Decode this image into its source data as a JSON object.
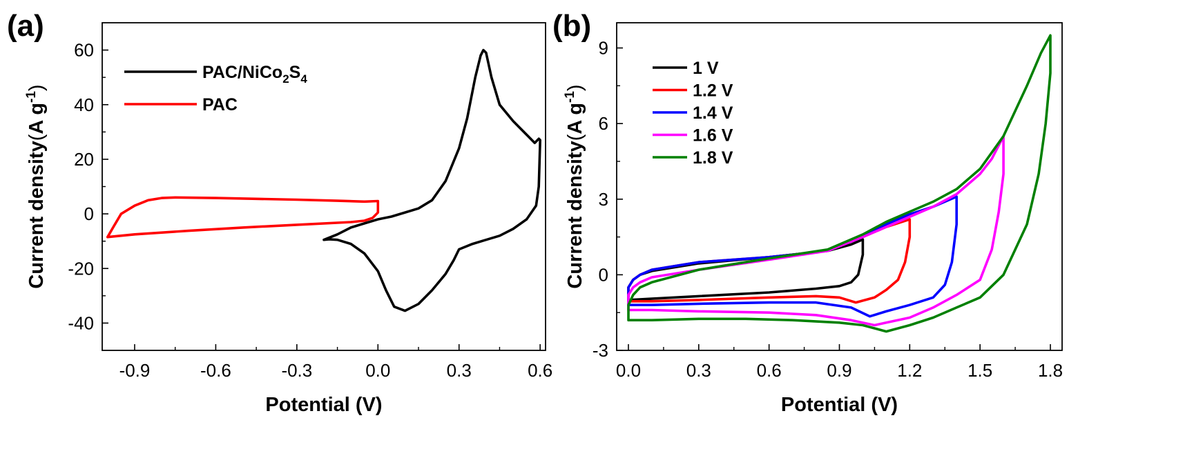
{
  "chart_data": [
    {
      "panel_label": "(a)",
      "type": "line",
      "xlabel": "Potential (V)",
      "ylabel": {
        "main": "Current density",
        "open": "(",
        "unit": "A g",
        "sup": "-1",
        "close": ")"
      },
      "xlim": [
        -1.02,
        0.62
      ],
      "ylim": [
        -50,
        70
      ],
      "x_ticks": [
        "-0.9",
        "-0.6",
        "-0.3",
        "0.0",
        "0.3",
        "0.6"
      ],
      "y_ticks": [
        "-40",
        "-20",
        "0",
        "20",
        "40",
        "60"
      ],
      "legend_position": "top-left",
      "series": [
        {
          "name": "PAC/NiCo2S4",
          "legend": {
            "base": "PAC/NiCo",
            "sub1": "2",
            "mid": "S",
            "sub2": "4"
          },
          "color": "#000000",
          "points": [
            [
              -0.2,
              -9.5
            ],
            [
              -0.15,
              -7.5
            ],
            [
              -0.1,
              -5.0
            ],
            [
              -0.05,
              -3.5
            ],
            [
              0.0,
              -2.0
            ],
            [
              0.05,
              -1.0
            ],
            [
              0.1,
              0.5
            ],
            [
              0.15,
              2.0
            ],
            [
              0.2,
              5.0
            ],
            [
              0.25,
              12.0
            ],
            [
              0.3,
              24.0
            ],
            [
              0.33,
              35.0
            ],
            [
              0.36,
              50.0
            ],
            [
              0.38,
              58.0
            ],
            [
              0.39,
              60.0
            ],
            [
              0.4,
              59.0
            ],
            [
              0.42,
              50.0
            ],
            [
              0.45,
              40.0
            ],
            [
              0.5,
              34.0
            ],
            [
              0.55,
              29.0
            ],
            [
              0.58,
              26.0
            ],
            [
              0.595,
              27.5
            ],
            [
              0.6,
              27.0
            ],
            [
              0.595,
              10.0
            ],
            [
              0.585,
              3.0
            ],
            [
              0.55,
              -2.0
            ],
            [
              0.5,
              -5.5
            ],
            [
              0.45,
              -8.0
            ],
            [
              0.4,
              -9.5
            ],
            [
              0.35,
              -11.0
            ],
            [
              0.3,
              -13.0
            ],
            [
              0.28,
              -17.0
            ],
            [
              0.25,
              -22.0
            ],
            [
              0.2,
              -28.0
            ],
            [
              0.15,
              -33.0
            ],
            [
              0.1,
              -35.5
            ],
            [
              0.06,
              -34.0
            ],
            [
              0.03,
              -28.0
            ],
            [
              0.0,
              -21.0
            ],
            [
              -0.05,
              -14.5
            ],
            [
              -0.1,
              -11.0
            ],
            [
              -0.15,
              -9.5
            ],
            [
              -0.18,
              -9.3
            ],
            [
              -0.2,
              -9.5
            ]
          ]
        },
        {
          "name": "PAC",
          "legend": {
            "base": "PAC"
          },
          "color": "#ff0000",
          "points": [
            [
              -1.0,
              -8.5
            ],
            [
              -0.98,
              -5.0
            ],
            [
              -0.95,
              0.0
            ],
            [
              -0.9,
              3.0
            ],
            [
              -0.85,
              5.0
            ],
            [
              -0.8,
              5.8
            ],
            [
              -0.75,
              6.0
            ],
            [
              -0.6,
              5.8
            ],
            [
              -0.45,
              5.5
            ],
            [
              -0.3,
              5.2
            ],
            [
              -0.15,
              4.8
            ],
            [
              -0.05,
              4.5
            ],
            [
              0.0,
              4.7
            ],
            [
              0.0,
              0.5
            ],
            [
              -0.02,
              -1.5
            ],
            [
              -0.05,
              -2.5
            ],
            [
              -0.1,
              -3.0
            ],
            [
              -0.3,
              -4.0
            ],
            [
              -0.5,
              -5.0
            ],
            [
              -0.7,
              -6.2
            ],
            [
              -0.9,
              -7.5
            ],
            [
              -1.0,
              -8.5
            ]
          ]
        }
      ]
    },
    {
      "panel_label": "(b)",
      "type": "line",
      "xlabel": "Potential (V)",
      "ylabel": {
        "main": "Current density",
        "open": "(",
        "unit": "A g",
        "sup": "-1",
        "close": ")"
      },
      "xlim": [
        -0.05,
        1.85
      ],
      "ylim": [
        -3,
        10
      ],
      "x_ticks": [
        "0.0",
        "0.3",
        "0.6",
        "0.9",
        "1.2",
        "1.5",
        "1.8"
      ],
      "y_ticks": [
        "-3",
        "0",
        "3",
        "6",
        "9"
      ],
      "legend_position": "top-left",
      "series": [
        {
          "name": "1 V",
          "legend": {
            "base": "1 V"
          },
          "color": "#000000",
          "points": [
            [
              0.0,
              -1.0
            ],
            [
              0.0,
              -0.5
            ],
            [
              0.02,
              -0.2
            ],
            [
              0.05,
              0.0
            ],
            [
              0.1,
              0.15
            ],
            [
              0.3,
              0.45
            ],
            [
              0.6,
              0.7
            ],
            [
              0.85,
              0.95
            ],
            [
              0.95,
              1.2
            ],
            [
              1.0,
              1.4
            ],
            [
              1.0,
              0.8
            ],
            [
              0.98,
              0.0
            ],
            [
              0.95,
              -0.3
            ],
            [
              0.9,
              -0.45
            ],
            [
              0.8,
              -0.55
            ],
            [
              0.6,
              -0.7
            ],
            [
              0.3,
              -0.85
            ],
            [
              0.1,
              -0.95
            ],
            [
              0.0,
              -1.0
            ]
          ]
        },
        {
          "name": "1.2 V",
          "legend": {
            "base": "1.2 V"
          },
          "color": "#ff0000",
          "points": [
            [
              0.0,
              -1.05
            ],
            [
              0.0,
              -0.5
            ],
            [
              0.02,
              -0.2
            ],
            [
              0.05,
              0.0
            ],
            [
              0.1,
              0.2
            ],
            [
              0.3,
              0.5
            ],
            [
              0.6,
              0.7
            ],
            [
              0.85,
              0.95
            ],
            [
              1.0,
              1.5
            ],
            [
              1.1,
              1.9
            ],
            [
              1.2,
              2.2
            ],
            [
              1.2,
              1.5
            ],
            [
              1.18,
              0.5
            ],
            [
              1.15,
              -0.2
            ],
            [
              1.1,
              -0.6
            ],
            [
              1.05,
              -0.9
            ],
            [
              0.97,
              -1.1
            ],
            [
              0.9,
              -0.9
            ],
            [
              0.8,
              -0.85
            ],
            [
              0.6,
              -0.9
            ],
            [
              0.3,
              -1.0
            ],
            [
              0.1,
              -1.05
            ],
            [
              0.0,
              -1.05
            ]
          ]
        },
        {
          "name": "1.4 V",
          "legend": {
            "base": "1.4 V"
          },
          "color": "#0000ff",
          "points": [
            [
              0.0,
              -1.2
            ],
            [
              0.0,
              -0.5
            ],
            [
              0.02,
              -0.2
            ],
            [
              0.05,
              0.0
            ],
            [
              0.1,
              0.2
            ],
            [
              0.3,
              0.5
            ],
            [
              0.6,
              0.7
            ],
            [
              0.85,
              0.95
            ],
            [
              1.0,
              1.5
            ],
            [
              1.1,
              2.0
            ],
            [
              1.2,
              2.4
            ],
            [
              1.3,
              2.7
            ],
            [
              1.4,
              3.1
            ],
            [
              1.4,
              2.0
            ],
            [
              1.38,
              0.5
            ],
            [
              1.35,
              -0.4
            ],
            [
              1.3,
              -0.9
            ],
            [
              1.2,
              -1.2
            ],
            [
              1.1,
              -1.45
            ],
            [
              1.03,
              -1.65
            ],
            [
              0.95,
              -1.3
            ],
            [
              0.8,
              -1.1
            ],
            [
              0.6,
              -1.1
            ],
            [
              0.3,
              -1.15
            ],
            [
              0.1,
              -1.2
            ],
            [
              0.0,
              -1.2
            ]
          ]
        },
        {
          "name": "1.6 V",
          "legend": {
            "base": "1.6 V"
          },
          "color": "#ff00ff",
          "points": [
            [
              0.0,
              -1.4
            ],
            [
              0.0,
              -0.8
            ],
            [
              0.02,
              -0.5
            ],
            [
              0.05,
              -0.3
            ],
            [
              0.1,
              -0.1
            ],
            [
              0.3,
              0.2
            ],
            [
              0.6,
              0.6
            ],
            [
              0.85,
              0.95
            ],
            [
              1.0,
              1.5
            ],
            [
              1.1,
              1.9
            ],
            [
              1.2,
              2.3
            ],
            [
              1.3,
              2.7
            ],
            [
              1.4,
              3.2
            ],
            [
              1.5,
              4.0
            ],
            [
              1.55,
              4.6
            ],
            [
              1.6,
              5.5
            ],
            [
              1.6,
              4.0
            ],
            [
              1.58,
              2.5
            ],
            [
              1.55,
              1.0
            ],
            [
              1.5,
              -0.2
            ],
            [
              1.4,
              -0.8
            ],
            [
              1.3,
              -1.3
            ],
            [
              1.2,
              -1.7
            ],
            [
              1.1,
              -1.9
            ],
            [
              1.05,
              -2.0
            ],
            [
              0.95,
              -1.8
            ],
            [
              0.8,
              -1.6
            ],
            [
              0.6,
              -1.5
            ],
            [
              0.3,
              -1.45
            ],
            [
              0.1,
              -1.4
            ],
            [
              0.0,
              -1.4
            ]
          ]
        },
        {
          "name": "1.8 V",
          "legend": {
            "base": "1.8 V"
          },
          "color": "#008000",
          "points": [
            [
              0.0,
              -1.8
            ],
            [
              0.0,
              -1.2
            ],
            [
              0.02,
              -0.8
            ],
            [
              0.05,
              -0.5
            ],
            [
              0.1,
              -0.3
            ],
            [
              0.3,
              0.2
            ],
            [
              0.6,
              0.65
            ],
            [
              0.85,
              1.0
            ],
            [
              1.0,
              1.6
            ],
            [
              1.1,
              2.1
            ],
            [
              1.2,
              2.5
            ],
            [
              1.3,
              2.9
            ],
            [
              1.4,
              3.4
            ],
            [
              1.5,
              4.2
            ],
            [
              1.6,
              5.5
            ],
            [
              1.7,
              7.5
            ],
            [
              1.76,
              8.8
            ],
            [
              1.8,
              9.5
            ],
            [
              1.8,
              8.0
            ],
            [
              1.78,
              6.0
            ],
            [
              1.75,
              4.0
            ],
            [
              1.7,
              2.0
            ],
            [
              1.6,
              0.0
            ],
            [
              1.5,
              -0.9
            ],
            [
              1.4,
              -1.3
            ],
            [
              1.3,
              -1.7
            ],
            [
              1.2,
              -2.0
            ],
            [
              1.1,
              -2.25
            ],
            [
              1.0,
              -2.0
            ],
            [
              0.9,
              -1.9
            ],
            [
              0.7,
              -1.8
            ],
            [
              0.5,
              -1.75
            ],
            [
              0.3,
              -1.75
            ],
            [
              0.1,
              -1.8
            ],
            [
              0.0,
              -1.8
            ]
          ]
        }
      ]
    }
  ]
}
